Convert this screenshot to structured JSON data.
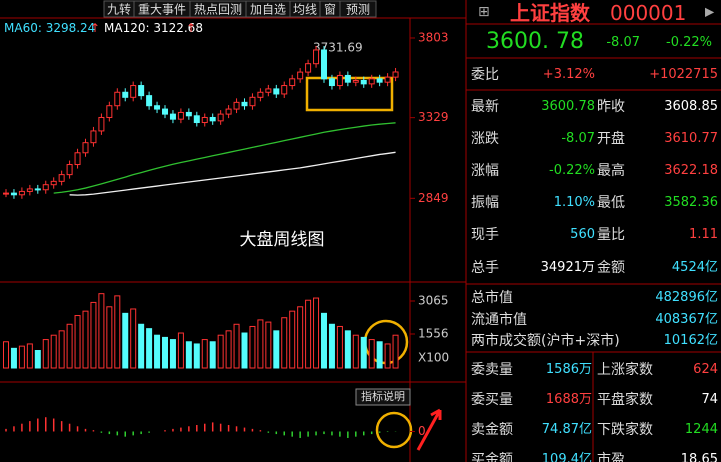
{
  "toolbar": [
    "九转",
    "重大事件",
    "热点回测",
    "加自选",
    "均线",
    "窗",
    "预测"
  ],
  "ma_labels": [
    "MA60: 3298.24",
    "MA120: 3122.68"
  ],
  "annotation": "大盘周线图",
  "peak_label": "3731.69",
  "price_panel": {
    "ylim": [
      2363,
      3910
    ],
    "yticks": [
      3803,
      3329,
      2849
    ],
    "close": [
      2880,
      2870,
      2890,
      2905,
      2900,
      2930,
      2950,
      2990,
      3050,
      3120,
      3180,
      3250,
      3330,
      3400,
      3480,
      3450,
      3520,
      3460,
      3400,
      3380,
      3350,
      3320,
      3360,
      3340,
      3300,
      3330,
      3310,
      3350,
      3380,
      3420,
      3400,
      3450,
      3480,
      3500,
      3470,
      3520,
      3560,
      3600,
      3650,
      3731.69,
      3560,
      3520,
      3580,
      3540,
      3550,
      3530,
      3560,
      3540,
      3570,
      3600.78
    ],
    "ma60": [
      null,
      null,
      null,
      null,
      null,
      null,
      2880,
      2885,
      2892,
      2900,
      2910,
      2922,
      2935,
      2948,
      2962,
      2975,
      2990,
      3002,
      3015,
      3028,
      3040,
      3052,
      3062,
      3072,
      3082,
      3092,
      3102,
      3112,
      3122,
      3132,
      3142,
      3152,
      3162,
      3172,
      3182,
      3192,
      3202,
      3212,
      3222,
      3232,
      3242,
      3250,
      3258,
      3265,
      3272,
      3279,
      3285,
      3290,
      3294,
      3298.24
    ],
    "ma120": [
      null,
      null,
      null,
      null,
      null,
      null,
      null,
      null,
      2870,
      2868,
      2870,
      2874,
      2880,
      2886,
      2892,
      2898,
      2904,
      2910,
      2916,
      2922,
      2928,
      2934,
      2940,
      2946,
      2952,
      2958,
      2964,
      2970,
      2976,
      2982,
      2988,
      2994,
      3000,
      3006,
      3012,
      3018,
      3024,
      3030,
      3038,
      3046,
      3054,
      3062,
      3070,
      3078,
      3086,
      3094,
      3102,
      3110,
      3116,
      3122.68
    ]
  },
  "volume_panel": {
    "ylim": [
      0,
      3568
    ],
    "yticks": [
      3065,
      1556
    ],
    "unit": "X100",
    "values": [
      1200,
      900,
      1000,
      1100,
      800,
      1300,
      1500,
      1700,
      2000,
      2400,
      2600,
      3000,
      3400,
      2800,
      3300,
      2500,
      2700,
      2000,
      1800,
      1500,
      1400,
      1300,
      1600,
      1200,
      1100,
      1300,
      1200,
      1500,
      1700,
      2000,
      1600,
      1900,
      2200,
      2100,
      1700,
      2300,
      2600,
      2800,
      3100,
      3200,
      2500,
      2000,
      1900,
      1700,
      1500,
      1400,
      1300,
      1200,
      1100,
      1500
    ]
  },
  "macd_panel": {
    "button": "指标说明",
    "ylim": [
      -1100,
      1600
    ],
    "yticks": [
      0
    ],
    "values": [
      100,
      200,
      300,
      400,
      500,
      550,
      500,
      400,
      300,
      200,
      100,
      50,
      -50,
      -100,
      -150,
      -200,
      -150,
      -100,
      -50,
      0,
      50,
      100,
      150,
      200,
      250,
      300,
      350,
      300,
      250,
      200,
      150,
      100,
      50,
      -50,
      -100,
      -150,
      -200,
      -250,
      -200,
      -150,
      -100,
      -150,
      -200,
      -250,
      -200,
      -150,
      -100,
      -50,
      -20,
      -10
    ]
  },
  "quote": {
    "name": "上证指数",
    "code": "000001",
    "price": "3600. 78",
    "change": "-8.07",
    "pct": "-0.22%",
    "rows": [
      [
        "委比",
        "+3.12%",
        "+1022715"
      ],
      [
        "最新",
        "3600.78",
        "昨收",
        "3608.85"
      ],
      [
        "涨跌",
        "-8.07",
        "开盘",
        "3610.77"
      ],
      [
        "涨幅",
        "-0.22%",
        "最高",
        "3622.18"
      ],
      [
        "振幅",
        "1.10%",
        "最低",
        "3582.36"
      ],
      [
        "现手",
        "560",
        "量比",
        "1.11"
      ],
      [
        "总手",
        "34921万",
        "金额",
        "4524亿"
      ]
    ],
    "market": [
      [
        "总市值",
        "482896亿"
      ],
      [
        "流通市值",
        "408367亿"
      ],
      [
        "两市成交额(沪市+深市)",
        "10162亿"
      ]
    ],
    "orders": [
      [
        "委卖量",
        "1586万",
        "上涨家数",
        "624"
      ],
      [
        "委买量",
        "1688万",
        "平盘家数",
        "74"
      ],
      [
        "卖金额",
        "74.87亿",
        "下跌家数",
        "1244"
      ],
      [
        "买金额",
        "109.4亿",
        "市盈",
        "18.65"
      ]
    ]
  }
}
